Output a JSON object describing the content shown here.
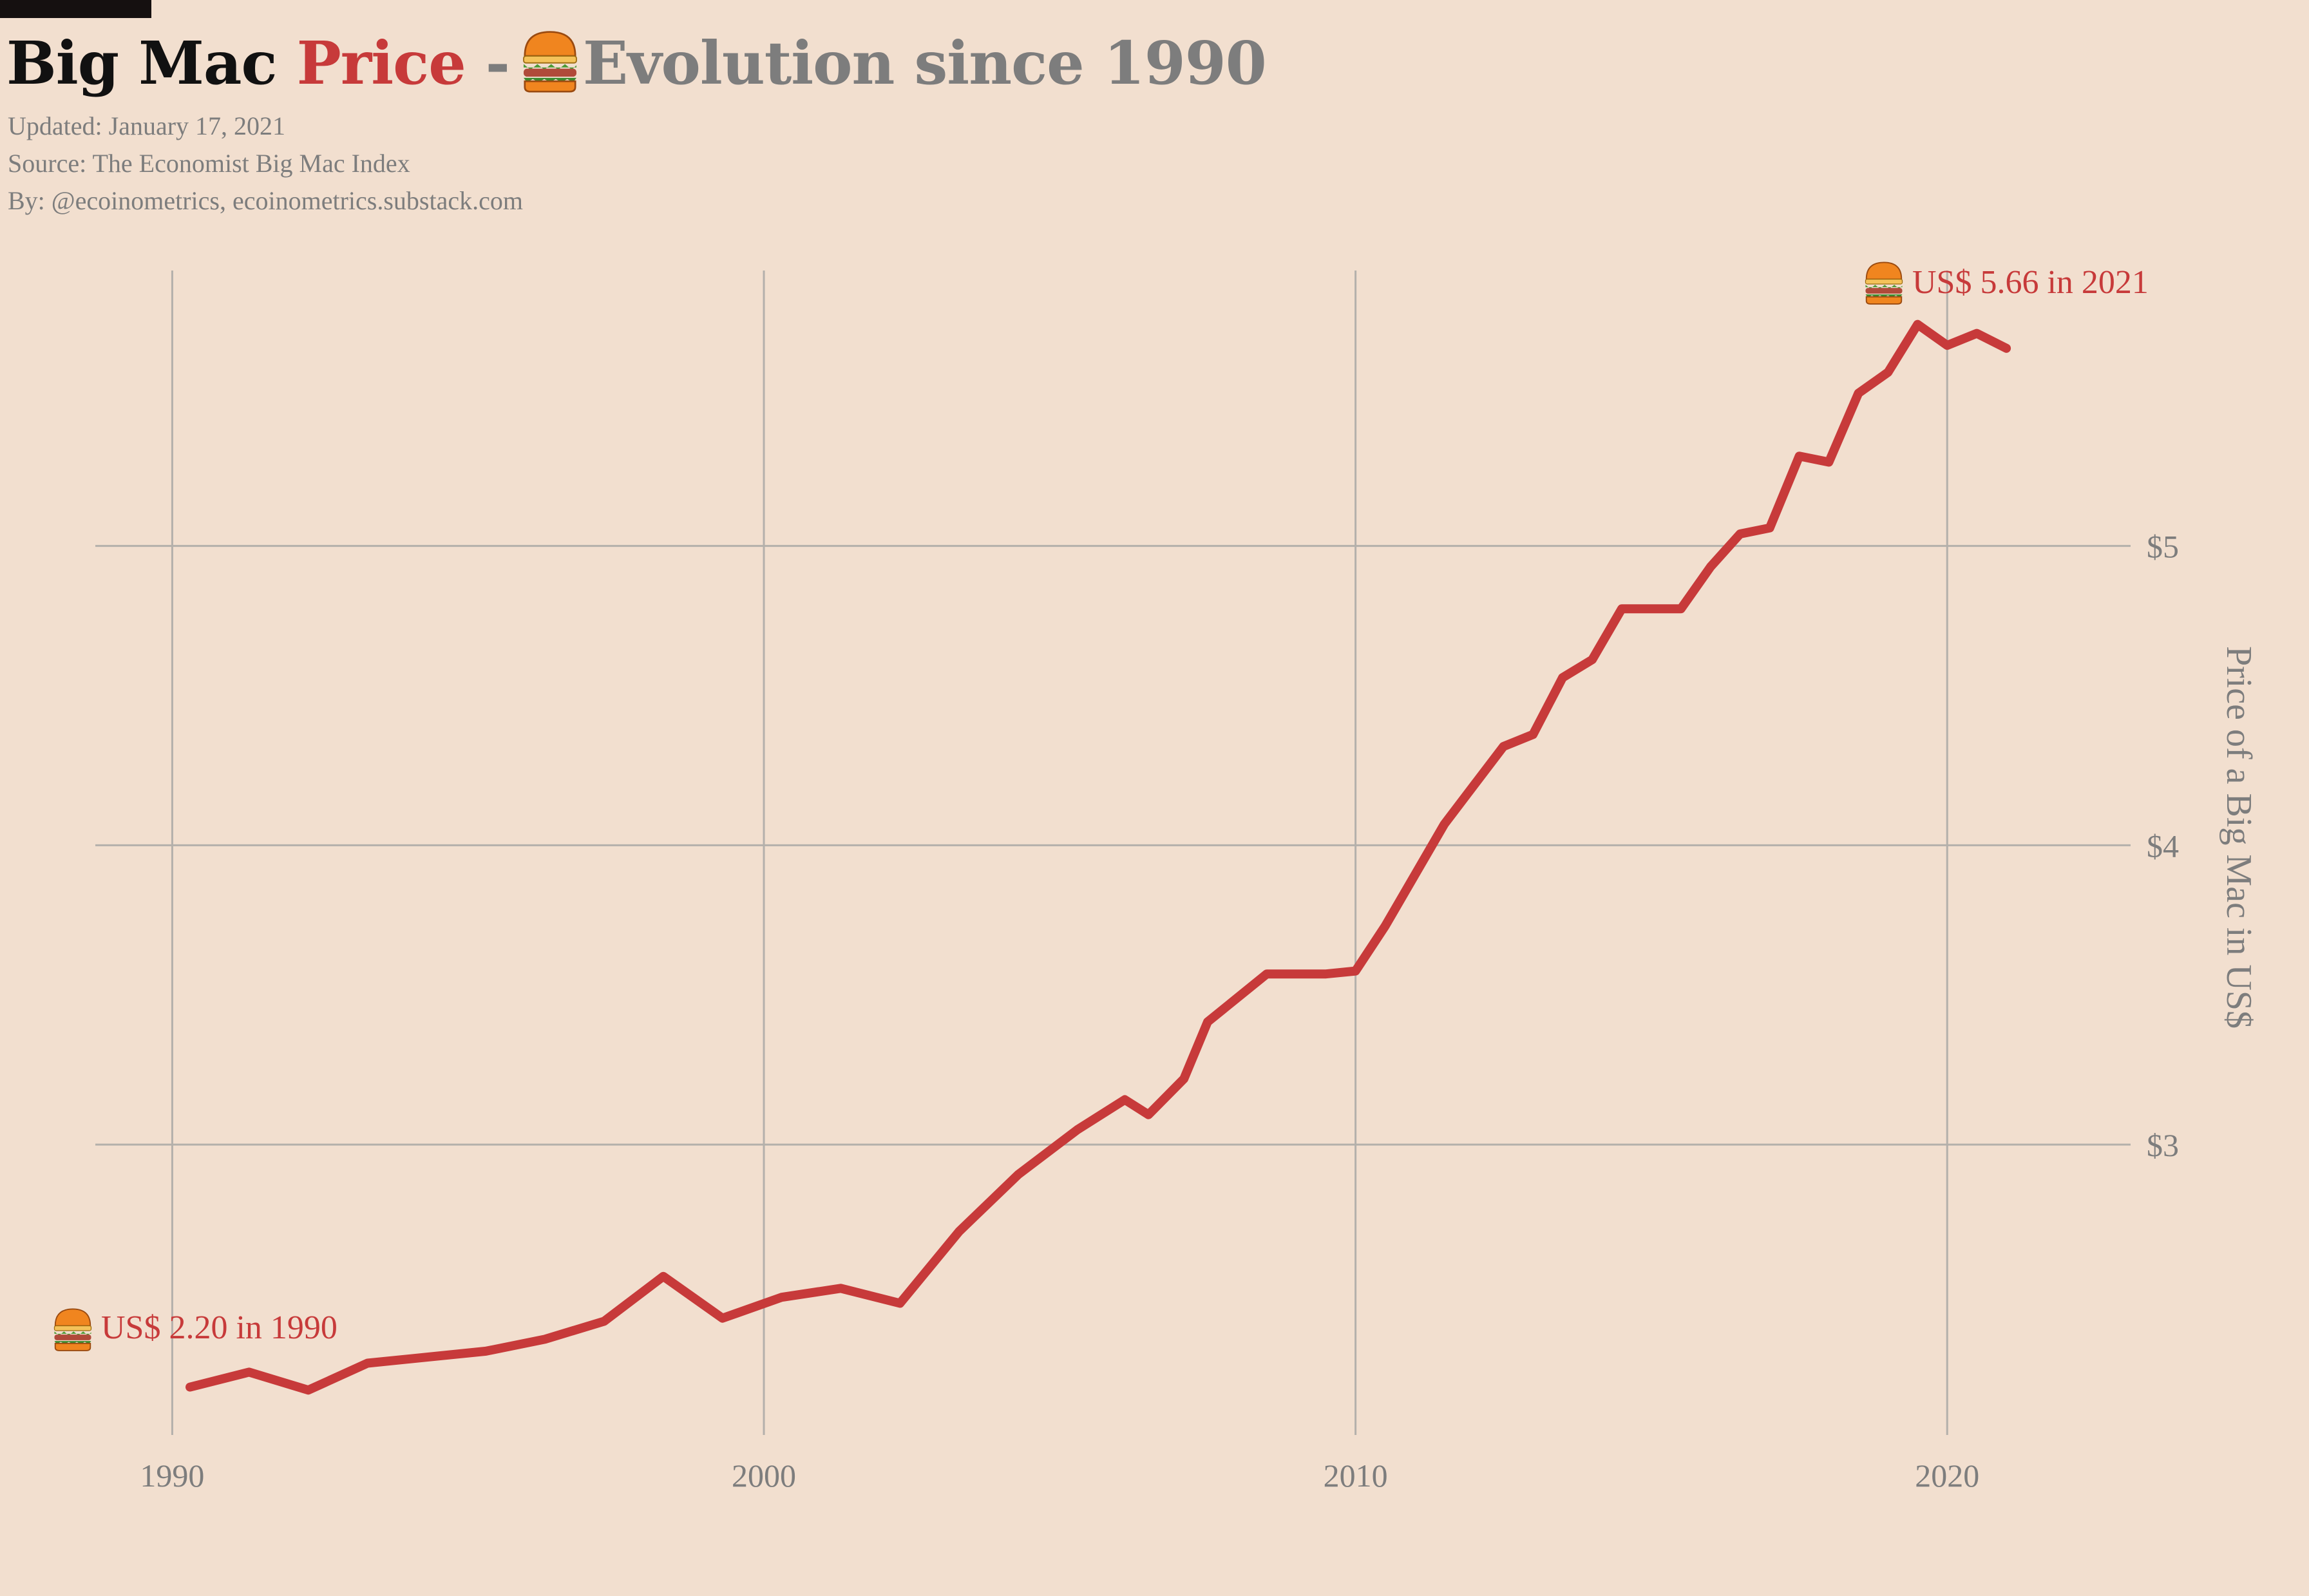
{
  "title": {
    "part1": "Big Mac",
    "part2": "Price",
    "separator": "-",
    "part3": "Evolution since 1990",
    "icon": "burger-icon"
  },
  "meta": {
    "updated": "Updated: January 17, 2021",
    "source": "Source: The Economist Big Mac Index",
    "by": "By: @ecoinometrics, ecoinometrics.substack.com"
  },
  "colors": {
    "background": "#f2dfcf",
    "line": "#c73a3a",
    "grid": "#b4b0ab",
    "text_grey": "#7d7d7d",
    "title_black": "#111111"
  },
  "annotations": {
    "start": "US$ 2.20 in 1990",
    "end": "US$ 5.66 in 2021"
  },
  "chart_data": {
    "type": "line",
    "title": "Big Mac Price - Evolution since 1990",
    "xlabel": "",
    "ylabel": "Price of a Big Mac in US$",
    "xlim": [
      1988.7,
      2023.1
    ],
    "ylim": [
      2.03,
      5.92
    ],
    "xticks": [
      1990,
      2000,
      2010,
      2020
    ],
    "xtick_labels": [
      "1990",
      "2000",
      "2010",
      "2020"
    ],
    "yticks": [
      3,
      4,
      5
    ],
    "ytick_labels": [
      "$3",
      "$4",
      "$5"
    ],
    "yaxis_side": "right",
    "grid": true,
    "series": [
      {
        "x": [
          1990.3,
          1991.3,
          1992.3,
          1993.3,
          1994.3,
          1995.3,
          1996.3,
          1997.3,
          1998.3,
          1999.3,
          2000.3,
          2001.3,
          2002.3,
          2003.3,
          2004.3,
          2005.3,
          2006.1,
          2006.5,
          2007.1,
          2007.5,
          2008.5,
          2009.0,
          2009.5,
          2010.0,
          2010.5,
          2011.0,
          2011.5,
          2012.0,
          2012.5,
          2013.0,
          2013.5,
          2014.0,
          2014.5,
          2015.0,
          2015.5,
          2016.0,
          2016.5,
          2017.0,
          2017.5,
          2018.0,
          2018.5,
          2019.0,
          2019.5,
          2020.0,
          2020.5,
          2021.0
        ],
        "y": [
          2.19,
          2.24,
          2.18,
          2.27,
          2.29,
          2.31,
          2.35,
          2.41,
          2.56,
          2.42,
          2.49,
          2.52,
          2.47,
          2.71,
          2.9,
          3.05,
          3.15,
          3.1,
          3.22,
          3.41,
          3.57,
          3.57,
          3.57,
          3.58,
          3.73,
          3.9,
          4.07,
          4.2,
          4.33,
          4.37,
          4.56,
          4.62,
          4.79,
          4.79,
          4.79,
          4.93,
          5.04,
          5.06,
          5.3,
          5.28,
          5.51,
          5.58,
          5.74,
          5.67,
          5.71,
          5.66
        ]
      }
    ]
  }
}
